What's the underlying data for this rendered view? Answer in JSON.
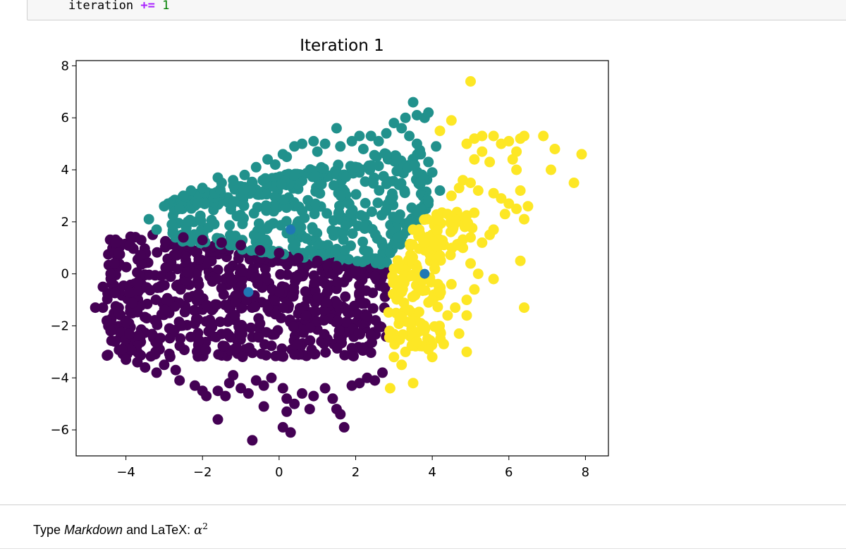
{
  "code_cell": {
    "code_ident": "iteration",
    "code_op": "+=",
    "code_num": "1"
  },
  "chart_data": {
    "type": "scatter",
    "title": "Iteration 1",
    "xlabel": "",
    "ylabel": "",
    "xlim": [
      -5.3,
      8.6
    ],
    "ylim": [
      -7.0,
      8.2
    ],
    "xticks": [
      -4,
      -2,
      0,
      2,
      4,
      6,
      8
    ],
    "yticks": [
      -6,
      -4,
      -2,
      0,
      2,
      4,
      6,
      8
    ],
    "xtick_labels": [
      "−4",
      "−2",
      "0",
      "2",
      "4",
      "6",
      "8"
    ],
    "ytick_labels": [
      "−6",
      "−4",
      "−2",
      "0",
      "2",
      "4",
      "6",
      "8"
    ],
    "grid": false,
    "colors": {
      "cluster_purple": "#440154",
      "cluster_teal": "#21918c",
      "cluster_yellow": "#fde725",
      "centroid": "#1f77b4"
    },
    "clusters": [
      {
        "color": "#440154",
        "core_region": {
          "x": [
            -4.5,
            2.8
          ],
          "y": [
            -3.2,
            1.5
          ]
        },
        "points": [
          [
            -4.8,
            -1.3
          ],
          [
            -4.6,
            -1.3
          ],
          [
            -4.4,
            -2.2
          ],
          [
            -4.3,
            -2.6
          ],
          [
            -4.2,
            -1.5
          ],
          [
            -4.1,
            -2.9
          ],
          [
            -4.4,
            0.0
          ],
          [
            -4.3,
            0.4
          ],
          [
            -4.2,
            0.8
          ],
          [
            -3.9,
            1.1
          ],
          [
            -3.6,
            1.3
          ],
          [
            -3.3,
            1.5
          ],
          [
            -4.0,
            -3.3
          ],
          [
            -3.7,
            -3.4
          ],
          [
            -3.5,
            -3.6
          ],
          [
            -3.2,
            -3.8
          ],
          [
            -3.0,
            -3.5
          ],
          [
            -2.7,
            -3.7
          ],
          [
            -2.6,
            -4.1
          ],
          [
            -2.2,
            -4.3
          ],
          [
            -2.0,
            -4.5
          ],
          [
            -1.9,
            -4.7
          ],
          [
            -1.6,
            -4.5
          ],
          [
            -1.4,
            -4.7
          ],
          [
            -1.3,
            -4.2
          ],
          [
            -1.0,
            -4.4
          ],
          [
            -0.8,
            -4.6
          ],
          [
            -0.6,
            -4.1
          ],
          [
            -0.4,
            -4.3
          ],
          [
            -0.2,
            -4.0
          ],
          [
            0.1,
            -4.4
          ],
          [
            0.2,
            -4.8
          ],
          [
            0.4,
            -5.0
          ],
          [
            0.6,
            -4.6
          ],
          [
            0.9,
            -4.7
          ],
          [
            1.2,
            -4.4
          ],
          [
            1.4,
            -4.8
          ],
          [
            1.5,
            -5.2
          ],
          [
            1.6,
            -5.4
          ],
          [
            1.7,
            -5.9
          ],
          [
            1.9,
            -4.3
          ],
          [
            2.1,
            -4.2
          ],
          [
            2.3,
            -4.0
          ],
          [
            2.5,
            -4.1
          ],
          [
            2.7,
            -3.8
          ],
          [
            -1.6,
            -5.6
          ],
          [
            -0.7,
            -6.4
          ],
          [
            0.1,
            -5.9
          ],
          [
            0.3,
            -6.1
          ],
          [
            -0.4,
            -5.1
          ],
          [
            0.2,
            -5.3
          ],
          [
            -2.5,
            1.4
          ],
          [
            -2.0,
            1.3
          ],
          [
            -1.5,
            1.2
          ],
          [
            -1.0,
            1.1
          ],
          [
            -0.5,
            0.9
          ],
          [
            0.0,
            0.8
          ],
          [
            0.5,
            0.6
          ],
          [
            1.0,
            0.5
          ],
          [
            1.5,
            0.3
          ],
          [
            2.0,
            0.1
          ],
          [
            2.5,
            -0.1
          ],
          [
            -4.6,
            -0.5
          ],
          [
            -4.5,
            -1.8
          ],
          [
            -1.2,
            -3.9
          ],
          [
            0.8,
            -5.2
          ]
        ]
      },
      {
        "color": "#21918c",
        "core_region": {
          "x": [
            -2.8,
            3.9
          ],
          "y": [
            0.3,
            4.8
          ]
        },
        "points": [
          [
            -3.4,
            2.1
          ],
          [
            -2.9,
            2.7
          ],
          [
            -2.6,
            2.5
          ],
          [
            -2.5,
            3.0
          ],
          [
            -2.3,
            3.2
          ],
          [
            -2.0,
            3.3
          ],
          [
            -1.6,
            3.7
          ],
          [
            -1.2,
            3.6
          ],
          [
            -0.9,
            3.8
          ],
          [
            -0.6,
            4.1
          ],
          [
            -0.3,
            4.4
          ],
          [
            -0.1,
            4.2
          ],
          [
            0.1,
            4.6
          ],
          [
            0.4,
            4.9
          ],
          [
            0.6,
            5.0
          ],
          [
            0.9,
            5.1
          ],
          [
            1.2,
            5.0
          ],
          [
            1.5,
            5.6
          ],
          [
            1.6,
            4.9
          ],
          [
            1.9,
            5.1
          ],
          [
            2.1,
            5.3
          ],
          [
            2.4,
            5.3
          ],
          [
            2.6,
            5.1
          ],
          [
            2.8,
            5.4
          ],
          [
            3.0,
            5.8
          ],
          [
            3.2,
            5.6
          ],
          [
            3.3,
            6.0
          ],
          [
            3.5,
            6.6
          ],
          [
            3.6,
            6.1
          ],
          [
            3.8,
            6.0
          ],
          [
            3.9,
            6.2
          ],
          [
            3.4,
            5.3
          ],
          [
            3.6,
            5.0
          ],
          [
            4.1,
            4.9
          ],
          [
            3.7,
            4.6
          ],
          [
            3.9,
            4.3
          ],
          [
            4.0,
            3.9
          ],
          [
            3.7,
            3.5
          ],
          [
            4.2,
            3.2
          ],
          [
            3.9,
            2.8
          ],
          [
            3.6,
            2.4
          ],
          [
            3.4,
            2.0
          ],
          [
            3.1,
            1.4
          ],
          [
            2.9,
            0.8
          ],
          [
            2.6,
            0.5
          ],
          [
            -3.0,
            2.6
          ],
          [
            -1.5,
            3.5
          ],
          [
            0.2,
            4.5
          ],
          [
            1.0,
            4.7
          ],
          [
            2.2,
            4.8
          ],
          [
            -2.8,
            1.9
          ],
          [
            -3.2,
            1.7
          ]
        ]
      },
      {
        "color": "#fde725",
        "core_region": {
          "x": [
            2.8,
            4.6
          ],
          "y": [
            -2.8,
            2.4
          ]
        },
        "points": [
          [
            5.0,
            7.4
          ],
          [
            4.5,
            5.9
          ],
          [
            4.2,
            5.5
          ],
          [
            4.9,
            5.0
          ],
          [
            5.1,
            5.2
          ],
          [
            5.3,
            5.3
          ],
          [
            5.6,
            5.3
          ],
          [
            5.8,
            5.0
          ],
          [
            6.0,
            5.1
          ],
          [
            6.3,
            5.2
          ],
          [
            6.4,
            5.3
          ],
          [
            6.9,
            5.3
          ],
          [
            7.2,
            4.8
          ],
          [
            7.1,
            4.0
          ],
          [
            7.9,
            4.6
          ],
          [
            7.7,
            3.5
          ],
          [
            6.2,
            4.7
          ],
          [
            6.1,
            4.4
          ],
          [
            6.2,
            4.0
          ],
          [
            5.5,
            4.3
          ],
          [
            5.3,
            4.7
          ],
          [
            5.1,
            4.4
          ],
          [
            4.8,
            3.6
          ],
          [
            4.5,
            3.0
          ],
          [
            4.7,
            3.3
          ],
          [
            5.0,
            3.5
          ],
          [
            5.2,
            3.2
          ],
          [
            5.6,
            3.1
          ],
          [
            5.8,
            2.9
          ],
          [
            6.0,
            2.7
          ],
          [
            6.2,
            2.5
          ],
          [
            6.5,
            2.6
          ],
          [
            6.3,
            3.2
          ],
          [
            6.4,
            2.1
          ],
          [
            5.9,
            2.3
          ],
          [
            5.6,
            1.7
          ],
          [
            5.5,
            1.5
          ],
          [
            5.3,
            1.2
          ],
          [
            5.0,
            1.4
          ],
          [
            4.8,
            1.0
          ],
          [
            5.0,
            0.4
          ],
          [
            5.2,
            0.0
          ],
          [
            5.6,
            -0.2
          ],
          [
            5.1,
            -0.6
          ],
          [
            4.9,
            -1.0
          ],
          [
            4.6,
            -1.3
          ],
          [
            4.4,
            -1.6
          ],
          [
            4.9,
            -1.6
          ],
          [
            6.3,
            0.5
          ],
          [
            6.4,
            -1.3
          ],
          [
            4.7,
            -2.3
          ],
          [
            4.3,
            -2.7
          ],
          [
            4.9,
            -3.0
          ],
          [
            3.9,
            -2.9
          ],
          [
            3.6,
            -2.6
          ],
          [
            3.3,
            -3.0
          ],
          [
            3.0,
            -3.2
          ],
          [
            2.9,
            -4.4
          ],
          [
            3.5,
            -4.2
          ],
          [
            3.2,
            -3.5
          ],
          [
            4.0,
            -3.2
          ],
          [
            3.5,
            1.7
          ],
          [
            4.1,
            2.1
          ],
          [
            4.4,
            2.3
          ],
          [
            3.8,
            1.2
          ],
          [
            4.2,
            0.7
          ],
          [
            3.0,
            0.2
          ],
          [
            3.2,
            -0.7
          ],
          [
            4.5,
            -0.4
          ],
          [
            3.7,
            -1.9
          ]
        ]
      }
    ],
    "centroids": [
      [
        -0.8,
        -0.7
      ],
      [
        0.3,
        1.7
      ],
      [
        3.8,
        0.0
      ]
    ]
  },
  "markdown_cell": {
    "text_prefix": "Type ",
    "text_em": "Markdown",
    "text_middle": " and LaTeX: ",
    "math_base": "α",
    "math_sup": "2"
  }
}
